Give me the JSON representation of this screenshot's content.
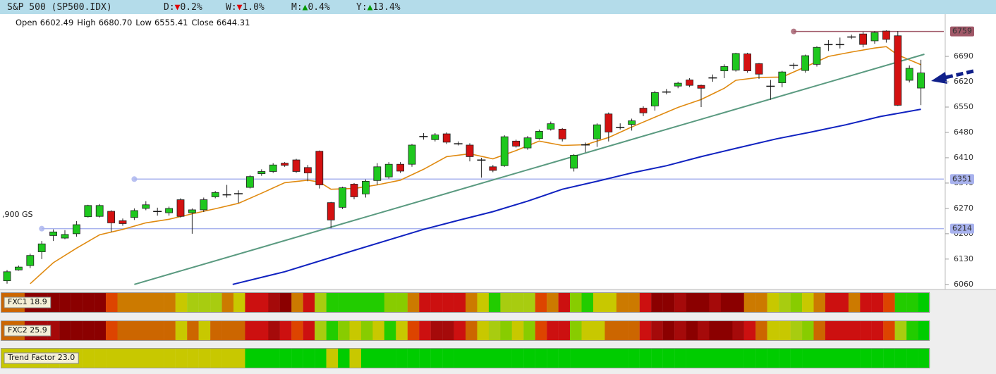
{
  "header": {
    "title": "S&P 500 (SP500.IDX)",
    "changes": [
      {
        "label": "D:",
        "arrow": "▼",
        "value": "0.2%",
        "color": "#e00000"
      },
      {
        "label": "W:",
        "arrow": "▼",
        "value": "1.0%",
        "color": "#e00000"
      },
      {
        "label": "M:",
        "arrow": "▲",
        "value": "0.4%",
        "color": "#009a00"
      },
      {
        "label": "Y:",
        "arrow": "▲",
        "value": "13.4%",
        "color": "#009a00"
      }
    ],
    "ohlc": [
      {
        "label": "Open",
        "value": "6602.49"
      },
      {
        "label": "High",
        "value": "6680.70"
      },
      {
        "label": "Low",
        "value": "6555.41"
      },
      {
        "label": "Close",
        "value": "6644.31"
      }
    ]
  },
  "chart_data": {
    "type": "candlestick",
    "up_color": "#1ec81e",
    "down_color": "#d41111",
    "open": [
      6070,
      6100,
      6112,
      6150,
      6195,
      6188,
      6200,
      6247,
      6248,
      6262,
      6236,
      6245,
      6270,
      6262,
      6258,
      6294,
      6258,
      6266,
      6302,
      6308,
      6312,
      6328,
      6366,
      6372,
      6395,
      6404,
      6383,
      6428,
      6286,
      6273,
      6337,
      6310,
      6347,
      6357,
      6392,
      6392,
      6469,
      6460,
      6476,
      6450,
      6445,
      6405,
      6385,
      6388,
      6456,
      6437,
      6463,
      6489,
      6489,
      6381,
      6447,
      6462,
      6531,
      6495,
      6502,
      6547,
      6553,
      6593,
      6608,
      6625,
      6610,
      6631,
      6650,
      6652,
      6697,
      6670,
      6608,
      6617,
      6666,
      6651,
      6668,
      6723,
      6723,
      6744,
      6752,
      6733,
      6760,
      6747,
      6624,
      6602.49
    ],
    "high": [
      6100,
      6112,
      6145,
      6180,
      6212,
      6210,
      6235,
      6280,
      6282,
      6265,
      6242,
      6270,
      6290,
      6272,
      6275,
      6298,
      6270,
      6300,
      6318,
      6335,
      6320,
      6362,
      6378,
      6395,
      6398,
      6407,
      6390,
      6430,
      6288,
      6330,
      6340,
      6350,
      6395,
      6398,
      6398,
      6448,
      6478,
      6478,
      6480,
      6455,
      6450,
      6410,
      6390,
      6472,
      6460,
      6470,
      6488,
      6510,
      6492,
      6420,
      6452,
      6505,
      6535,
      6505,
      6518,
      6552,
      6595,
      6600,
      6620,
      6630,
      6612,
      6640,
      6668,
      6700,
      6700,
      6672,
      6625,
      6650,
      6672,
      6695,
      6718,
      6735,
      6742,
      6750,
      6758,
      6760,
      6762,
      6760,
      6665,
      6680.7
    ],
    "low": [
      6062,
      6098,
      6105,
      6130,
      6180,
      6185,
      6192,
      6245,
      6245,
      6205,
      6222,
      6238,
      6265,
      6250,
      6250,
      6245,
      6200,
      6260,
      6298,
      6300,
      6285,
      6325,
      6360,
      6368,
      6385,
      6368,
      6345,
      6325,
      6215,
      6268,
      6295,
      6300,
      6335,
      6352,
      6368,
      6385,
      6460,
      6455,
      6448,
      6444,
      6400,
      6355,
      6370,
      6385,
      6438,
      6432,
      6460,
      6485,
      6455,
      6372,
      6425,
      6440,
      6455,
      6488,
      6485,
      6525,
      6540,
      6585,
      6602,
      6605,
      6550,
      6620,
      6630,
      6648,
      6645,
      6628,
      6570,
      6605,
      6655,
      6645,
      6662,
      6705,
      6712,
      6738,
      6715,
      6725,
      6728,
      6553,
      6618,
      6555.41
    ],
    "close": [
      6095,
      6108,
      6140,
      6172,
      6205,
      6198,
      6225,
      6278,
      6278,
      6230,
      6228,
      6264,
      6280,
      6263,
      6270,
      6248,
      6266,
      6294,
      6314,
      6309,
      6311,
      6358,
      6372,
      6390,
      6389,
      6372,
      6368,
      6335,
      6238,
      6327,
      6302,
      6345,
      6385,
      6392,
      6373,
      6445,
      6470,
      6473,
      6453,
      6449,
      6413,
      6404,
      6375,
      6468,
      6442,
      6465,
      6483,
      6504,
      6462,
      6417,
      6446,
      6501,
      6481,
      6494,
      6512,
      6534,
      6590,
      6592,
      6616,
      6610,
      6602,
      6632,
      6662,
      6698,
      6650,
      6641,
      6609,
      6647,
      6667,
      6692,
      6715,
      6724,
      6724,
      6745,
      6723,
      6756,
      6737,
      6555,
      6657,
      6644.31
    ],
    "ylim": [
      6046,
      6803
    ],
    "yticks": [
      6060,
      6130,
      6200,
      6270,
      6340,
      6410,
      6480,
      6550,
      6620,
      6690
    ],
    "lines": [
      {
        "color": "#e08a10",
        "x": [
          2,
          4,
          6,
          8,
          10,
          12,
          14,
          16,
          18,
          20,
          22,
          24,
          26,
          27,
          28,
          30,
          32,
          34,
          36,
          38,
          40,
          42,
          44,
          46,
          48,
          50,
          52,
          54,
          56,
          58,
          60,
          62,
          63,
          65,
          67,
          69,
          71,
          73,
          75,
          76,
          77,
          79
        ],
        "values": [
          6062,
          6120,
          6160,
          6197,
          6212,
          6230,
          6240,
          6255,
          6269,
          6284,
          6312,
          6341,
          6348,
          6343,
          6323,
          6325,
          6335,
          6348,
          6378,
          6413,
          6421,
          6407,
          6430,
          6456,
          6444,
          6446,
          6466,
          6495,
          6522,
          6549,
          6571,
          6602,
          6624,
          6632,
          6633,
          6661,
          6690,
          6702,
          6713,
          6717,
          6694,
          6667
        ]
      },
      {
        "color": "#1022c0",
        "x": [
          19.5,
          24,
          30,
          36,
          39,
          42,
          45,
          48,
          51,
          54,
          57,
          60,
          63,
          66.5,
          69.5,
          72.5,
          75.5,
          79
        ],
        "values": [
          6060,
          6095,
          6154,
          6212,
          6237,
          6261,
          6290,
          6323,
          6345,
          6368,
          6388,
          6413,
          6436,
          6462,
          6481,
          6501,
          6524,
          6544
        ]
      },
      {
        "color": "#5a9a80",
        "x": [
          11,
          79.3
        ],
        "values": [
          6060,
          6696
        ]
      }
    ],
    "levels": [
      {
        "value": 6759,
        "color": "#a05868",
        "start": 68
      },
      {
        "value": 6351,
        "color": "#a8b2ee",
        "start": 11
      },
      {
        "value": 6214,
        "color": "#a8b2ee",
        "start": 3
      }
    ],
    "annotation": ",900 GS"
  },
  "strips": [
    {
      "label": "FXC1 18.9",
      "colors": [
        "#cc6600",
        "#cc6600",
        "#8b0000",
        "#8b0000",
        "#8b0000",
        "#8b0000",
        "#8b0000",
        "#8b0000",
        "#8b0000",
        "#dd4400",
        "#cc7a00",
        "#cc7a00",
        "#cc7a00",
        "#cc7a00",
        "#cc7a00",
        "#c8c800",
        "#a8cc10",
        "#a8cc10",
        "#a8cc10",
        "#cc7a00",
        "#c8c800",
        "#cc1010",
        "#cc1010",
        "#a50a0a",
        "#8b0000",
        "#cc7a00",
        "#cc1010",
        "#a8cc10",
        "#22cc00",
        "#22cc00",
        "#22cc00",
        "#22cc00",
        "#22cc00",
        "#88cc00",
        "#88cc00",
        "#cc7a00",
        "#cc1010",
        "#cc1010",
        "#cc1010",
        "#cc1010",
        "#cc7a00",
        "#c8c800",
        "#22cc00",
        "#a8cc10",
        "#a8cc10",
        "#a8cc10",
        "#dd4400",
        "#cc7a00",
        "#cc1010",
        "#88cc00",
        "#22cc00",
        "#c8c800",
        "#c8c800",
        "#cc7a00",
        "#cc7a00",
        "#cc1010",
        "#8b0000",
        "#8b0000",
        "#a50a0a",
        "#8b0000",
        "#8b0000",
        "#a50a0a",
        "#8b0000",
        "#8b0000",
        "#cc7a00",
        "#cc7a00",
        "#c8c800",
        "#a8cc10",
        "#88cc00",
        "#c8c800",
        "#cc7a00",
        "#cc1010",
        "#cc1010",
        "#cc7a00",
        "#cc1010",
        "#cc1010",
        "#dd4400",
        "#22cc00",
        "#22cc00",
        "#00cc00"
      ]
    },
    {
      "label": "FXC2 25.9",
      "colors": [
        "#cc6600",
        "#cc6600",
        "#a50a0a",
        "#a50a0a",
        "#a50a0a",
        "#8b0000",
        "#8b0000",
        "#8b0000",
        "#8b0000",
        "#dd4400",
        "#cc6600",
        "#cc6600",
        "#cc6600",
        "#cc6600",
        "#cc6600",
        "#c8c800",
        "#cc6600",
        "#c8c800",
        "#cc6600",
        "#cc6600",
        "#cc6600",
        "#cc1010",
        "#cc1010",
        "#a50a0a",
        "#cc1010",
        "#dd4400",
        "#cc1010",
        "#a8cc10",
        "#22cc00",
        "#88cc00",
        "#c8c800",
        "#88cc00",
        "#c8c800",
        "#22cc00",
        "#c8c800",
        "#dd4400",
        "#cc1010",
        "#a50a0a",
        "#a50a0a",
        "#cc1010",
        "#cc6600",
        "#c8c800",
        "#a8cc10",
        "#88cc00",
        "#c8c800",
        "#88cc00",
        "#dd4400",
        "#cc1010",
        "#cc1010",
        "#88cc00",
        "#c8c800",
        "#c8c800",
        "#cc6600",
        "#cc6600",
        "#cc6600",
        "#cc1010",
        "#a50a0a",
        "#8b0000",
        "#a50a0a",
        "#8b0000",
        "#a50a0a",
        "#8b0000",
        "#8b0000",
        "#a50a0a",
        "#cc1010",
        "#cc6600",
        "#c8c800",
        "#c8c800",
        "#a8cc10",
        "#88cc00",
        "#cc6600",
        "#cc1010",
        "#cc1010",
        "#cc1010",
        "#cc1010",
        "#cc1010",
        "#dd4400",
        "#a8cc10",
        "#22cc00",
        "#00cc00"
      ]
    },
    {
      "label": "Trend Factor 23.0",
      "colors": [
        "#c8c800",
        "#c8c800",
        "#c8c800",
        "#c8c800",
        "#c8c800",
        "#c8c800",
        "#c8c800",
        "#c8c800",
        "#c8c800",
        "#c8c800",
        "#c8c800",
        "#c8c800",
        "#c8c800",
        "#c8c800",
        "#c8c800",
        "#c8c800",
        "#c8c800",
        "#c8c800",
        "#c8c800",
        "#c8c800",
        "#c8c800",
        "#00cc00",
        "#00cc00",
        "#00cc00",
        "#00cc00",
        "#00cc00",
        "#00cc00",
        "#00cc00",
        "#c8c800",
        "#00cc00",
        "#c8c800",
        "#00cc00",
        "#00cc00",
        "#00cc00",
        "#00cc00",
        "#00cc00",
        "#00cc00",
        "#00cc00",
        "#00cc00",
        "#00cc00",
        "#00cc00",
        "#00cc00",
        "#00cc00",
        "#00cc00",
        "#00cc00",
        "#00cc00",
        "#00cc00",
        "#00cc00",
        "#00cc00",
        "#00cc00",
        "#00cc00",
        "#00cc00",
        "#00cc00",
        "#00cc00",
        "#00cc00",
        "#00cc00",
        "#00cc00",
        "#00cc00",
        "#00cc00",
        "#00cc00",
        "#00cc00",
        "#00cc00",
        "#00cc00",
        "#00cc00",
        "#00cc00",
        "#00cc00",
        "#00cc00",
        "#00cc00",
        "#00cc00",
        "#00cc00",
        "#00cc00",
        "#00cc00",
        "#00cc00",
        "#00cc00",
        "#00cc00",
        "#00cc00",
        "#00cc00",
        "#00cc00",
        "#00cc00",
        "#00cc00"
      ]
    }
  ]
}
